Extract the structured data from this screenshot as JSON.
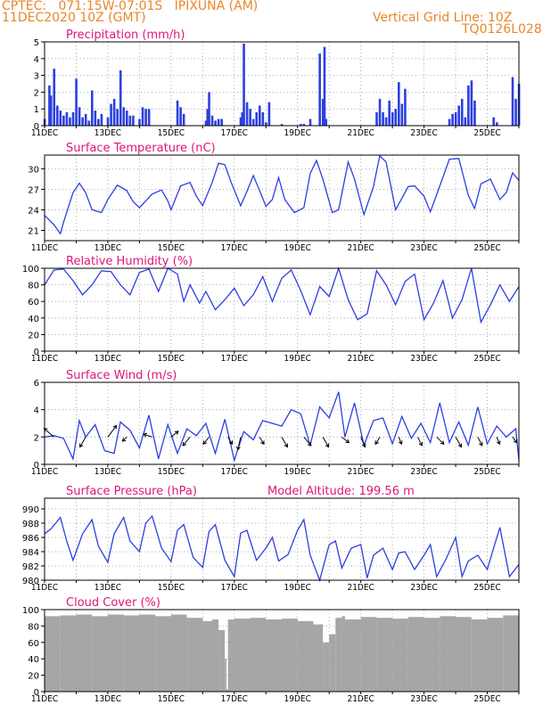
{
  "header": {
    "line1_left": "CPTEC:   071:15W-07:01S   IPIXUNA (AM)",
    "line2_left": "11DEC2020 10Z (GMT)",
    "line2_right": "Vertical Grid Line: 10Z",
    "line3_right": "TQ0126L028"
  },
  "colors": {
    "series": "#2c3fe0",
    "title": "#e0157a",
    "header": "#e8862a",
    "cloud": "#a6a6a6"
  },
  "chart_data": [
    {
      "type": "bar",
      "title": "Precipitation (mm/h)",
      "ylim": [
        0,
        5
      ],
      "yticks": [
        "0",
        "1",
        "2",
        "3",
        "4",
        "5"
      ],
      "xticks": [
        "11DEC",
        "13DEC",
        "15DEC",
        "17DEC",
        "19DEC",
        "21DEC",
        "23DEC",
        "25DEC"
      ],
      "x_days": [
        0,
        0.15,
        0.2,
        0.3,
        0.4,
        0.5,
        0.6,
        0.7,
        0.8,
        0.9,
        1.0,
        1.1,
        1.2,
        1.3,
        1.4,
        1.5,
        1.6,
        1.7,
        1.8,
        2.0,
        2.1,
        2.2,
        2.3,
        2.4,
        2.5,
        2.6,
        2.7,
        2.8,
        3.0,
        3.1,
        3.2,
        3.3,
        4.2,
        4.3,
        4.4,
        5.1,
        5.15,
        5.2,
        5.3,
        5.4,
        5.5,
        5.6,
        6.2,
        6.25,
        6.3,
        6.4,
        6.5,
        6.6,
        6.7,
        6.8,
        6.9,
        7.0,
        7.1,
        7.5,
        8.1,
        8.2,
        8.4,
        8.7,
        8.8,
        8.85,
        8.9,
        10.5,
        10.6,
        10.7,
        10.8,
        10.9,
        11.0,
        11.1,
        11.2,
        11.3,
        11.4,
        12.8,
        12.9,
        13.0,
        13.1,
        13.2,
        13.3,
        13.4,
        13.5,
        13.6,
        14.2,
        14.3,
        14.8,
        14.9,
        15.0
      ],
      "values": [
        0.4,
        2.4,
        1.8,
        3.4,
        1.2,
        0.9,
        0.6,
        0.8,
        0.5,
        0.8,
        2.8,
        1.1,
        0.5,
        0.7,
        0.3,
        2.1,
        0.9,
        0.4,
        0.7,
        0.5,
        1.3,
        1.6,
        1.0,
        3.3,
        1.1,
        0.9,
        0.6,
        0.6,
        0.4,
        1.1,
        1.0,
        1.0,
        1.5,
        1.1,
        0.7,
        0.3,
        1.0,
        2.0,
        0.6,
        0.3,
        0.4,
        0.4,
        0.5,
        0.8,
        4.9,
        1.4,
        1.0,
        0.4,
        0.8,
        1.2,
        0.8,
        0.2,
        1.4,
        0.1,
        0.1,
        0.1,
        0.4,
        4.3,
        1.6,
        4.7,
        0.4,
        0.8,
        1.6,
        0.8,
        0.5,
        1.5,
        0.8,
        1.0,
        2.6,
        1.3,
        2.2,
        0.4,
        0.7,
        0.8,
        1.2,
        1.6,
        0.5,
        2.4,
        2.7,
        1.5,
        0.5,
        0.2,
        2.9,
        1.6,
        2.5
      ]
    },
    {
      "type": "line",
      "title": "Surface Temperature (nC)",
      "ylim": [
        19.5,
        32
      ],
      "yticks": [
        "21",
        "24",
        "27",
        "30"
      ],
      "xticks": [
        "11DEC",
        "13DEC",
        "15DEC",
        "17DEC",
        "19DEC",
        "21DEC",
        "23DEC",
        "25DEC"
      ],
      "x_days": [
        0,
        0.3,
        0.5,
        0.6,
        0.9,
        1.1,
        1.3,
        1.5,
        1.8,
        2.0,
        2.3,
        2.6,
        2.8,
        3.0,
        3.4,
        3.7,
        3.9,
        4.0,
        4.3,
        4.6,
        4.8,
        5.0,
        5.3,
        5.5,
        5.7,
        5.9,
        6.2,
        6.4,
        6.6,
        6.8,
        7.0,
        7.2,
        7.4,
        7.6,
        7.9,
        8.2,
        8.4,
        8.6,
        8.8,
        9.1,
        9.3,
        9.6,
        9.8,
        10.1,
        10.4,
        10.6,
        10.8,
        11.1,
        11.5,
        11.7,
        12.0,
        12.2,
        12.5,
        12.8,
        13.1,
        13.4,
        13.6,
        13.8,
        14.1,
        14.4,
        14.6,
        14.8,
        15.0
      ],
      "values": [
        23.2,
        21.8,
        20.5,
        22.2,
        26.5,
        27.9,
        26.5,
        24.0,
        23.6,
        25.5,
        27.6,
        26.8,
        25.2,
        24.3,
        26.3,
        26.9,
        25.3,
        24.0,
        27.5,
        28.0,
        26.0,
        24.6,
        28.0,
        30.8,
        30.6,
        28.0,
        24.6,
        26.7,
        29.0,
        26.8,
        24.5,
        25.5,
        28.7,
        25.5,
        23.6,
        24.3,
        29.3,
        31.2,
        28.5,
        23.6,
        24.0,
        31.0,
        28.5,
        23.3,
        27.4,
        31.9,
        31.0,
        24.0,
        27.4,
        27.5,
        26.0,
        23.7,
        27.5,
        31.4,
        31.5,
        26.1,
        24.2,
        27.8,
        28.5,
        25.5,
        26.5,
        29.4,
        28.3
      ]
    },
    {
      "type": "line",
      "title": "Relative Humidity (%)",
      "ylim": [
        0,
        100
      ],
      "yticks": [
        "0",
        "20",
        "40",
        "60",
        "80",
        "100"
      ],
      "xticks": [
        "11DEC",
        "13DEC",
        "15DEC",
        "17DEC",
        "19DEC",
        "21DEC",
        "23DEC",
        "25DEC"
      ],
      "x_days": [
        0,
        0.3,
        0.6,
        0.9,
        1.2,
        1.5,
        1.8,
        2.1,
        2.4,
        2.7,
        3.0,
        3.3,
        3.6,
        3.9,
        4.2,
        4.4,
        4.6,
        4.9,
        5.1,
        5.4,
        5.7,
        6.0,
        6.3,
        6.6,
        6.9,
        7.2,
        7.5,
        7.8,
        8.1,
        8.4,
        8.7,
        9.0,
        9.3,
        9.6,
        9.9,
        10.2,
        10.5,
        10.8,
        11.1,
        11.4,
        11.7,
        12.0,
        12.3,
        12.6,
        12.9,
        13.2,
        13.5,
        13.8,
        14.1,
        14.4,
        14.7,
        15.0
      ],
      "values": [
        80,
        98,
        99,
        85,
        68,
        80,
        97,
        96,
        80,
        68,
        95,
        99,
        72,
        100,
        93,
        60,
        80,
        58,
        72,
        50,
        62,
        76,
        55,
        68,
        90,
        60,
        88,
        98,
        73,
        44,
        78,
        66,
        100,
        62,
        38,
        45,
        97,
        80,
        56,
        84,
        93,
        38,
        58,
        85,
        40,
        62,
        100,
        35,
        56,
        80,
        60,
        78
      ]
    },
    {
      "type": "line",
      "title": "Surface Wind (m/s)",
      "ylim": [
        0,
        6
      ],
      "yticks": [
        "0",
        "2",
        "4",
        "6"
      ],
      "xticks": [
        "11DEC",
        "13DEC",
        "15DEC",
        "17DEC",
        "19DEC",
        "21DEC",
        "23DEC",
        "25DEC"
      ],
      "x_days": [
        0,
        0.3,
        0.6,
        0.9,
        1.1,
        1.3,
        1.6,
        1.9,
        2.2,
        2.4,
        2.7,
        3.0,
        3.3,
        3.6,
        3.9,
        4.2,
        4.5,
        4.8,
        5.1,
        5.4,
        5.7,
        6.0,
        6.3,
        6.6,
        6.9,
        7.2,
        7.5,
        7.8,
        8.1,
        8.4,
        8.7,
        9.0,
        9.3,
        9.5,
        9.8,
        10.1,
        10.4,
        10.7,
        11.0,
        11.3,
        11.6,
        11.9,
        12.2,
        12.5,
        12.8,
        13.1,
        13.4,
        13.7,
        14.0,
        14.3,
        14.6,
        14.9,
        15.0
      ],
      "values": [
        2.0,
        2.1,
        1.9,
        0.4,
        3.2,
        2.0,
        2.9,
        1.0,
        0.8,
        3.1,
        2.5,
        1.2,
        3.6,
        0.4,
        2.9,
        0.8,
        2.6,
        2.1,
        3.0,
        0.8,
        3.3,
        0.3,
        2.4,
        1.8,
        3.2,
        3.0,
        2.8,
        4.0,
        3.7,
        1.4,
        4.2,
        3.4,
        5.3,
        2.0,
        4.5,
        1.4,
        3.2,
        3.4,
        1.5,
        3.5,
        1.9,
        3.0,
        1.6,
        4.5,
        1.6,
        3.1,
        1.4,
        4.2,
        1.5,
        2.8,
        2.0,
        2.6,
        0.3
      ],
      "vectors_days": [
        0.3,
        1.3,
        2.0,
        2.6,
        3.4,
        4.0,
        4.6,
        5.2,
        5.8,
        6.2,
        6.8,
        7.5,
        8.2,
        8.8,
        9.4,
        10.0,
        10.6,
        11.2,
        11.8,
        12.4,
        13.0,
        13.7,
        14.3,
        14.8
      ],
      "vectors_dx": [
        -0.7,
        -0.4,
        0.6,
        -0.3,
        -0.6,
        0.5,
        -0.5,
        -0.4,
        0.3,
        -0.2,
        0.3,
        0.4,
        0.5,
        0.4,
        0.5,
        0.3,
        -0.3,
        0.2,
        0.3,
        0.5,
        0.4,
        0.3,
        0.2,
        0.3
      ],
      "vectors_dy": [
        0.6,
        -0.7,
        0.8,
        -0.3,
        0.2,
        0.4,
        -0.6,
        -0.5,
        -0.5,
        -0.9,
        -0.5,
        -0.7,
        -0.6,
        -0.7,
        -0.4,
        -0.7,
        -0.5,
        -0.5,
        -0.6,
        -0.5,
        -0.7,
        -0.6,
        -0.5,
        -0.4
      ]
    },
    {
      "type": "line",
      "title": "Surface Pressure (hPa)",
      "annotation": "Model Altitude: 199.56 m",
      "ylim": [
        980,
        991.5
      ],
      "yticks": [
        "980",
        "982",
        "984",
        "986",
        "988",
        "990"
      ],
      "xticks": [
        "11DEC",
        "13DEC",
        "15DEC",
        "17DEC",
        "19DEC",
        "21DEC",
        "23DEC",
        "25DEC"
      ],
      "x_days": [
        0,
        0.2,
        0.5,
        0.7,
        0.9,
        1.2,
        1.5,
        1.7,
        2.0,
        2.2,
        2.5,
        2.7,
        3.0,
        3.2,
        3.4,
        3.7,
        4.0,
        4.2,
        4.4,
        4.7,
        5.0,
        5.2,
        5.4,
        5.7,
        6.0,
        6.2,
        6.4,
        6.7,
        7.0,
        7.2,
        7.4,
        7.7,
        8.0,
        8.2,
        8.4,
        8.7,
        9.0,
        9.2,
        9.4,
        9.7,
        10.0,
        10.2,
        10.4,
        10.7,
        11.0,
        11.2,
        11.4,
        11.7,
        12.0,
        12.2,
        12.4,
        12.7,
        13.0,
        13.2,
        13.4,
        13.7,
        14.0,
        14.2,
        14.4,
        14.7,
        15.0
      ],
      "values": [
        986.5,
        987.2,
        988.8,
        985.5,
        982.8,
        986.5,
        988.5,
        984.8,
        982.5,
        986.5,
        988.8,
        985.5,
        984.0,
        988.0,
        989.0,
        984.5,
        982.6,
        987.0,
        987.8,
        983.2,
        981.8,
        986.8,
        987.8,
        982.8,
        980.5,
        986.6,
        987.0,
        982.8,
        984.5,
        986.0,
        982.7,
        983.6,
        987.0,
        988.5,
        983.5,
        980.0,
        985.0,
        985.5,
        981.7,
        984.5,
        985.0,
        980.3,
        983.5,
        984.5,
        981.5,
        983.8,
        984.0,
        981.5,
        983.5,
        985.0,
        980.5,
        983.0,
        986.0,
        980.5,
        982.7,
        983.5,
        981.5,
        984.5,
        987.4,
        980.5,
        982.2
      ]
    },
    {
      "type": "area",
      "title": "Cloud Cover (%)",
      "ylim": [
        0,
        100
      ],
      "yticks": [
        "0",
        "20",
        "40",
        "60",
        "80",
        "100"
      ],
      "xticks": [
        "11DEC",
        "13DEC",
        "15DEC",
        "17DEC",
        "19DEC",
        "21DEC",
        "23DEC",
        "25DEC"
      ],
      "x_days": [
        0,
        0.5,
        1.0,
        1.5,
        2.0,
        2.5,
        3.0,
        3.5,
        4.0,
        4.5,
        5.0,
        5.3,
        5.5,
        5.7,
        5.75,
        5.8,
        6.0,
        6.5,
        7.0,
        7.5,
        8.0,
        8.5,
        8.8,
        9.0,
        9.2,
        9.4,
        9.5,
        10.0,
        10.5,
        11.0,
        11.5,
        12.0,
        12.5,
        13.0,
        13.5,
        14.0,
        14.5,
        15.0
      ],
      "values": [
        92,
        93,
        94,
        92,
        94,
        93,
        94,
        92,
        94,
        90,
        86,
        88,
        75,
        40,
        3,
        88,
        89,
        90,
        88,
        89,
        86,
        82,
        60,
        70,
        90,
        92,
        88,
        91,
        90,
        89,
        91,
        90,
        92,
        91,
        88,
        90,
        93,
        94
      ]
    }
  ]
}
